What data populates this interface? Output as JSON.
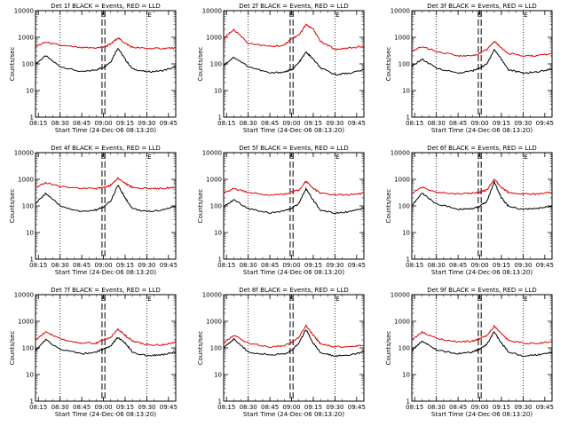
{
  "figure": {
    "background": "#ffffff",
    "events_color": "#000000",
    "lld_color": "#e00000",
    "ylabel": "Counts/sec",
    "xlabel": "Start Time (24-Dec-06 08:13:20)",
    "x_ticks": [
      "08:15",
      "08:30",
      "08:45",
      "09:00",
      "09:15",
      "09:30",
      "09:45"
    ],
    "y_ticks": [
      "1",
      "10",
      "100",
      "1000",
      "10000"
    ],
    "marker_s": "S",
    "marker_e": "E"
  },
  "chart_data": [
    {
      "type": "line",
      "title": "Det 1f BLACK = Events, RED = LLD",
      "xrange": [
        "08:13",
        "09:50"
      ],
      "yscale": "log",
      "ylim": [
        1,
        10000
      ],
      "x": [
        "08:13",
        "08:20",
        "08:30",
        "08:45",
        "08:55",
        "09:00",
        "09:05",
        "09:10",
        "09:15",
        "09:20",
        "09:30",
        "09:40",
        "09:50"
      ],
      "series": [
        {
          "name": "Events",
          "color": "#000000",
          "values": [
            100,
            200,
            80,
            50,
            60,
            75,
            120,
            400,
            150,
            65,
            50,
            55,
            75
          ]
        },
        {
          "name": "LLD",
          "color": "#e00000",
          "values": [
            450,
            650,
            500,
            400,
            400,
            430,
            550,
            950,
            600,
            420,
            380,
            380,
            400
          ]
        }
      ],
      "vlines_dashed": [
        "08:59",
        "09:01"
      ],
      "vlines_dotted": [
        "08:30",
        "09:30"
      ]
    },
    {
      "type": "line",
      "title": "Det 2f BLACK = Events, RED = LLD",
      "xrange": [
        "08:13",
        "09:50"
      ],
      "yscale": "log",
      "ylim": [
        1,
        10000
      ],
      "x": [
        "08:13",
        "08:20",
        "08:30",
        "08:45",
        "08:55",
        "09:00",
        "09:05",
        "09:10",
        "09:15",
        "09:20",
        "09:30",
        "09:40",
        "09:50"
      ],
      "series": [
        {
          "name": "Events",
          "color": "#000000",
          "values": [
            90,
            180,
            80,
            45,
            50,
            60,
            110,
            280,
            150,
            70,
            40,
            45,
            60
          ]
        },
        {
          "name": "LLD",
          "color": "#e00000",
          "values": [
            900,
            2000,
            600,
            450,
            500,
            900,
            1200,
            3000,
            2000,
            700,
            350,
            400,
            450
          ]
        }
      ],
      "vlines_dashed": [
        "08:59",
        "09:01"
      ],
      "vlines_dotted": [
        "08:30",
        "09:30"
      ]
    },
    {
      "type": "line",
      "title": "Det 3f BLACK = Events, RED = LLD",
      "xrange": [
        "08:13",
        "09:50"
      ],
      "yscale": "log",
      "ylim": [
        1,
        10000
      ],
      "x": [
        "08:13",
        "08:20",
        "08:30",
        "08:45",
        "08:55",
        "09:00",
        "09:05",
        "09:10",
        "09:15",
        "09:20",
        "09:30",
        "09:40",
        "09:50"
      ],
      "series": [
        {
          "name": "Events",
          "color": "#000000",
          "values": [
            80,
            150,
            70,
            45,
            55,
            70,
            100,
            350,
            150,
            60,
            45,
            50,
            65
          ]
        },
        {
          "name": "LLD",
          "color": "#e00000",
          "values": [
            300,
            450,
            300,
            200,
            200,
            250,
            350,
            700,
            400,
            250,
            200,
            200,
            250
          ]
        }
      ],
      "vlines_dashed": [
        "08:59",
        "09:01"
      ],
      "vlines_dotted": [
        "08:30",
        "09:30"
      ]
    },
    {
      "type": "line",
      "title": "Det 4f BLACK = Events, RED = LLD",
      "xrange": [
        "08:13",
        "09:50"
      ],
      "yscale": "log",
      "ylim": [
        1,
        10000
      ],
      "x": [
        "08:13",
        "08:20",
        "08:30",
        "08:45",
        "08:55",
        "09:00",
        "09:05",
        "09:10",
        "09:15",
        "09:20",
        "09:30",
        "09:40",
        "09:50"
      ],
      "series": [
        {
          "name": "Events",
          "color": "#000000",
          "values": [
            120,
            300,
            100,
            60,
            70,
            90,
            150,
            600,
            200,
            80,
            60,
            70,
            95
          ]
        },
        {
          "name": "LLD",
          "color": "#e00000",
          "values": [
            500,
            750,
            550,
            450,
            450,
            500,
            600,
            1100,
            700,
            500,
            450,
            450,
            500
          ]
        }
      ],
      "vlines_dashed": [
        "08:59",
        "09:01"
      ],
      "vlines_dotted": [
        "08:30",
        "09:30"
      ]
    },
    {
      "type": "line",
      "title": "Det 5f BLACK = Events, RED = LLD",
      "xrange": [
        "08:13",
        "09:50"
      ],
      "yscale": "log",
      "ylim": [
        1,
        10000
      ],
      "x": [
        "08:13",
        "08:20",
        "08:30",
        "08:45",
        "08:55",
        "09:00",
        "09:05",
        "09:10",
        "09:15",
        "09:20",
        "09:30",
        "09:40",
        "09:50"
      ],
      "series": [
        {
          "name": "Events",
          "color": "#000000",
          "values": [
            90,
            170,
            80,
            55,
            65,
            80,
            120,
            450,
            160,
            70,
            55,
            60,
            80
          ]
        },
        {
          "name": "LLD",
          "color": "#e00000",
          "values": [
            300,
            450,
            320,
            250,
            280,
            330,
            400,
            850,
            450,
            300,
            260,
            260,
            300
          ]
        }
      ],
      "vlines_dashed": [
        "08:59",
        "09:01"
      ],
      "vlines_dotted": [
        "08:30",
        "09:30"
      ]
    },
    {
      "type": "line",
      "title": "Det 6f BLACK = Events, RED = LLD",
      "xrange": [
        "08:13",
        "09:50"
      ],
      "yscale": "log",
      "ylim": [
        1,
        10000
      ],
      "x": [
        "08:13",
        "08:20",
        "08:30",
        "08:45",
        "08:55",
        "09:00",
        "09:05",
        "09:10",
        "09:15",
        "09:20",
        "09:30",
        "09:40",
        "09:50"
      ],
      "series": [
        {
          "name": "Events",
          "color": "#000000",
          "values": [
            100,
            300,
            120,
            75,
            80,
            95,
            150,
            800,
            200,
            95,
            75,
            80,
            100
          ]
        },
        {
          "name": "LLD",
          "color": "#e00000",
          "values": [
            300,
            500,
            320,
            280,
            300,
            330,
            400,
            1000,
            500,
            320,
            280,
            280,
            320
          ]
        }
      ],
      "vlines_dashed": [
        "08:59",
        "09:01"
      ],
      "vlines_dotted": [
        "08:30",
        "09:30"
      ]
    },
    {
      "type": "line",
      "title": "Det 7f BLACK = Events, RED = LLD",
      "xrange": [
        "08:13",
        "09:50"
      ],
      "yscale": "log",
      "ylim": [
        1,
        10000
      ],
      "x": [
        "08:13",
        "08:20",
        "08:30",
        "08:45",
        "08:55",
        "09:00",
        "09:05",
        "09:10",
        "09:15",
        "09:20",
        "09:30",
        "09:40",
        "09:50"
      ],
      "series": [
        {
          "name": "Events",
          "color": "#000000",
          "values": [
            80,
            200,
            90,
            60,
            70,
            90,
            120,
            250,
            150,
            70,
            50,
            55,
            70
          ]
        },
        {
          "name": "LLD",
          "color": "#e00000",
          "values": [
            200,
            400,
            220,
            150,
            150,
            200,
            250,
            500,
            300,
            180,
            130,
            130,
            160
          ]
        }
      ],
      "vlines_dashed": [
        "08:59",
        "09:01"
      ],
      "vlines_dotted": [
        "08:30",
        "09:30"
      ]
    },
    {
      "type": "line",
      "title": "Det 8f BLACK = Events, RED = LLD",
      "xrange": [
        "08:13",
        "09:50"
      ],
      "yscale": "log",
      "ylim": [
        1,
        10000
      ],
      "x": [
        "08:13",
        "08:20",
        "08:30",
        "08:45",
        "08:55",
        "09:00",
        "09:05",
        "09:10",
        "09:15",
        "09:20",
        "09:30",
        "09:40",
        "09:50"
      ],
      "series": [
        {
          "name": "Events",
          "color": "#000000",
          "values": [
            100,
            220,
            70,
            55,
            60,
            80,
            150,
            500,
            150,
            65,
            50,
            55,
            70
          ]
        },
        {
          "name": "LLD",
          "color": "#e00000",
          "values": [
            150,
            300,
            150,
            110,
            120,
            160,
            250,
            700,
            300,
            140,
            110,
            110,
            130
          ]
        }
      ],
      "vlines_dashed": [
        "08:59",
        "09:01"
      ],
      "vlines_dotted": [
        "08:30",
        "09:30"
      ]
    },
    {
      "type": "line",
      "title": "Det 9f BLACK = Events, RED = LLD",
      "xrange": [
        "08:13",
        "09:50"
      ],
      "yscale": "log",
      "ylim": [
        1,
        10000
      ],
      "x": [
        "08:13",
        "08:20",
        "08:30",
        "08:45",
        "08:55",
        "09:00",
        "09:05",
        "09:10",
        "09:15",
        "09:20",
        "09:30",
        "09:40",
        "09:50"
      ],
      "series": [
        {
          "name": "Events",
          "color": "#000000",
          "values": [
            80,
            180,
            85,
            60,
            70,
            90,
            140,
            400,
            150,
            70,
            50,
            55,
            70
          ]
        },
        {
          "name": "LLD",
          "color": "#e00000",
          "values": [
            200,
            400,
            230,
            170,
            180,
            220,
            300,
            650,
            350,
            190,
            150,
            150,
            170
          ]
        }
      ],
      "vlines_dashed": [
        "08:59",
        "09:01"
      ],
      "vlines_dotted": [
        "08:30",
        "09:30"
      ]
    }
  ]
}
